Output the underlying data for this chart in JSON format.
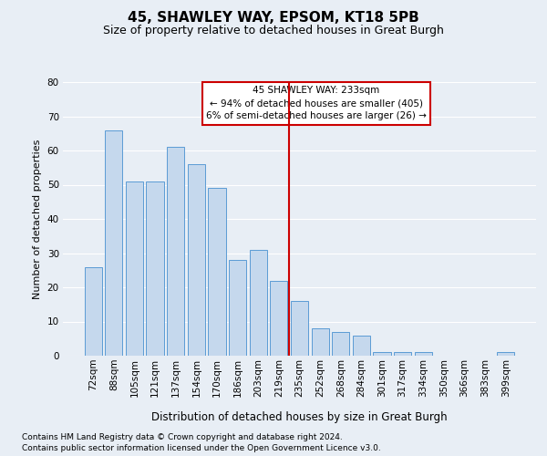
{
  "title1": "45, SHAWLEY WAY, EPSOM, KT18 5PB",
  "title2": "Size of property relative to detached houses in Great Burgh",
  "xlabel": "Distribution of detached houses by size in Great Burgh",
  "ylabel": "Number of detached properties",
  "categories": [
    "72sqm",
    "88sqm",
    "105sqm",
    "121sqm",
    "137sqm",
    "154sqm",
    "170sqm",
    "186sqm",
    "203sqm",
    "219sqm",
    "235sqm",
    "252sqm",
    "268sqm",
    "284sqm",
    "301sqm",
    "317sqm",
    "334sqm",
    "350sqm",
    "366sqm",
    "383sqm",
    "399sqm"
  ],
  "values": [
    26,
    66,
    51,
    51,
    61,
    56,
    49,
    28,
    31,
    22,
    16,
    8,
    7,
    6,
    1,
    1,
    1,
    0,
    0,
    0,
    1
  ],
  "bar_color": "#c5d8ed",
  "bar_edge_color": "#5b9bd5",
  "reference_bin_index": 10,
  "annotation_line1": "45 SHAWLEY WAY: 233sqm",
  "annotation_line2": "← 94% of detached houses are smaller (405)",
  "annotation_line3": "6% of semi-detached houses are larger (26) →",
  "annotation_box_color": "#ffffff",
  "annotation_box_edge_color": "#cc0000",
  "vline_color": "#cc0000",
  "ylim": [
    0,
    80
  ],
  "yticks": [
    0,
    10,
    20,
    30,
    40,
    50,
    60,
    70,
    80
  ],
  "footer1": "Contains HM Land Registry data © Crown copyright and database right 2024.",
  "footer2": "Contains public sector information licensed under the Open Government Licence v3.0.",
  "bg_color": "#e8eef5",
  "plot_bg_color": "#e8eef5",
  "grid_color": "#ffffff",
  "title1_fontsize": 11,
  "title2_fontsize": 9,
  "ylabel_fontsize": 8,
  "xlabel_fontsize": 8.5,
  "tick_fontsize": 7.5,
  "footer_fontsize": 6.5,
  "annot_fontsize": 7.5
}
